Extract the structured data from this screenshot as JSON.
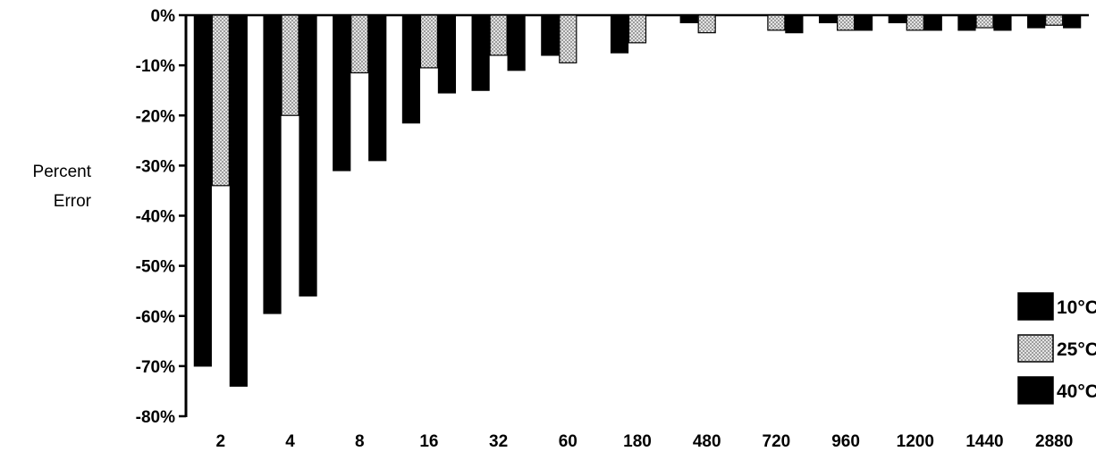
{
  "chart_data": {
    "type": "bar",
    "title": "",
    "xlabel": "",
    "ylabel_lines": [
      "Percent",
      "Error"
    ],
    "ylim": [
      -80,
      0
    ],
    "yticks": [
      0,
      -10,
      -20,
      -30,
      -40,
      -50,
      -60,
      -70,
      -80
    ],
    "ytick_labels": [
      "0%",
      "-10%",
      "-20%",
      "-30%",
      "-40%",
      "-50%",
      "-60%",
      "-70%",
      "-80%"
    ],
    "categories": [
      "2",
      "4",
      "8",
      "16",
      "32",
      "60",
      "180",
      "480",
      "720",
      "960",
      "1200",
      "1440",
      "2880"
    ],
    "series": [
      {
        "name": "10°C",
        "color": "#000000",
        "pattern": "solid",
        "values": [
          -70,
          -59.5,
          -31,
          -21.5,
          -15,
          -8,
          -7.5,
          -1.5,
          0,
          -1.5,
          -1.5,
          -3,
          -2.5
        ]
      },
      {
        "name": "25°C",
        "color": "#bdbdbd",
        "pattern": "stipple",
        "values": [
          -34,
          -20,
          -11.5,
          -10.5,
          -8,
          -9.5,
          -5.5,
          -3.5,
          -3,
          -3,
          -3,
          -2.5,
          -2
        ]
      },
      {
        "name": "40°C",
        "color": "#000000",
        "pattern": "solid",
        "values": [
          -74,
          -56,
          -29,
          -15.5,
          -11,
          0,
          0,
          0,
          -3.5,
          -3,
          -3,
          -3,
          -2.5
        ]
      }
    ],
    "legend_position": "bottom-right",
    "grid": false
  }
}
